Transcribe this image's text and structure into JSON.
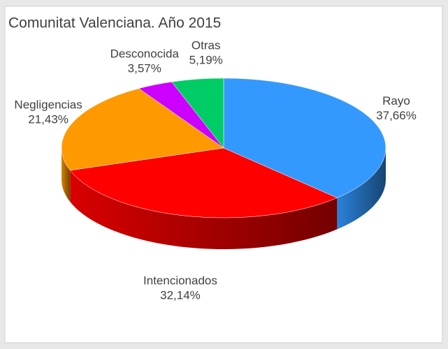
{
  "chart_data": {
    "type": "pie3d",
    "title": "Comunitat Valenciana. Año 2015",
    "categories": [
      "Rayo",
      "Intencionados",
      "Negligencias",
      "Desconocida",
      "Otras"
    ],
    "values": [
      37.66,
      32.14,
      21.43,
      3.57,
      5.19
    ],
    "value_labels": [
      "37,66%",
      "32,14%",
      "21,43%",
      "3,57%",
      "5,19%"
    ],
    "colors": [
      "#3399ff",
      "#ff0000",
      "#ff9900",
      "#cc00ff",
      "#00cc66"
    ]
  }
}
